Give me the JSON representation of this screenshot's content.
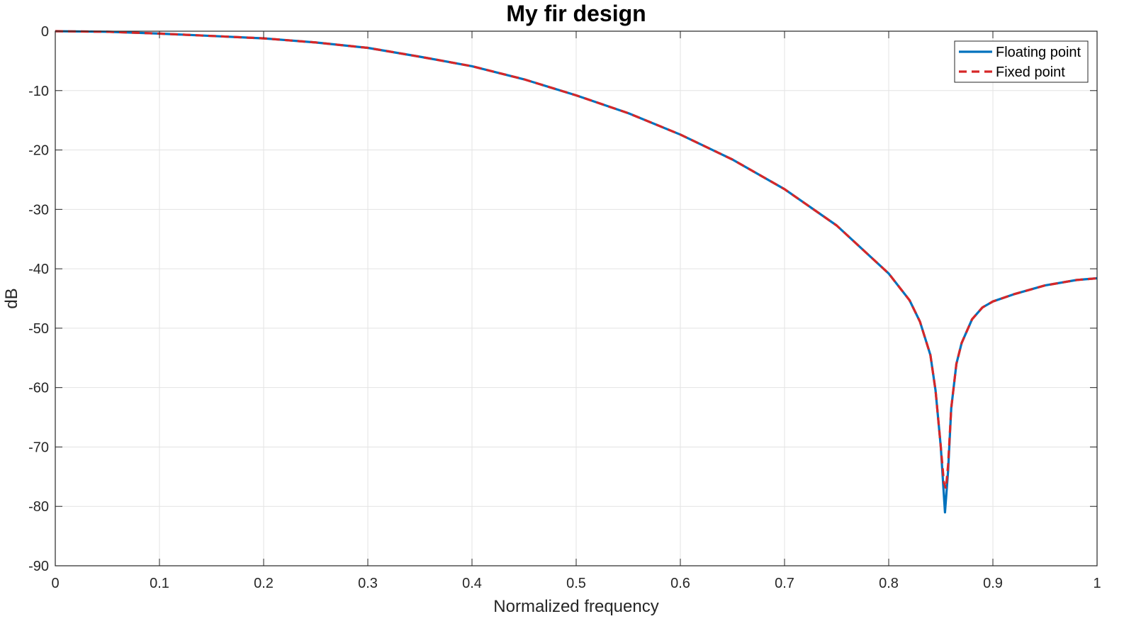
{
  "chart_data": {
    "type": "line",
    "title": "My fir design",
    "xlabel": "Normalized frequency",
    "ylabel": "dB",
    "xlim": [
      0,
      1
    ],
    "ylim": [
      -90,
      0
    ],
    "xticks": [
      0,
      0.1,
      0.2,
      0.3,
      0.4,
      0.5,
      0.6,
      0.7,
      0.8,
      0.9,
      1
    ],
    "xtick_labels": [
      "0",
      "0.1",
      "0.2",
      "0.3",
      "0.4",
      "0.5",
      "0.6",
      "0.7",
      "0.8",
      "0.9",
      "1"
    ],
    "yticks": [
      0,
      -10,
      -20,
      -30,
      -40,
      -50,
      -60,
      -70,
      -80,
      -90
    ],
    "ytick_labels": [
      "0",
      "-10",
      "-20",
      "-30",
      "-40",
      "-50",
      "-60",
      "-70",
      "-80",
      "-90"
    ],
    "grid": true,
    "legend_position": "top-right",
    "series": [
      {
        "name": "Floating point",
        "color": "#0072BD",
        "style": "solid",
        "x": [
          0,
          0.05,
          0.1,
          0.15,
          0.2,
          0.25,
          0.3,
          0.35,
          0.4,
          0.45,
          0.5,
          0.55,
          0.6,
          0.65,
          0.7,
          0.75,
          0.8,
          0.82,
          0.83,
          0.84,
          0.845,
          0.85,
          0.854,
          0.857,
          0.86,
          0.865,
          0.87,
          0.88,
          0.89,
          0.9,
          0.92,
          0.95,
          0.98,
          1
        ],
        "y": [
          0,
          -0.1,
          -0.4,
          -0.8,
          -1.2,
          -1.9,
          -2.8,
          -4.3,
          -5.9,
          -8.1,
          -10.8,
          -13.8,
          -17.4,
          -21.6,
          -26.6,
          -32.7,
          -40.8,
          -45.3,
          -48.9,
          -54.5,
          -60.5,
          -70,
          -81,
          -74,
          -63.5,
          -56,
          -52.5,
          -48.5,
          -46.5,
          -45.5,
          -44.3,
          -42.8,
          -41.9,
          -41.6
        ]
      },
      {
        "name": "Fixed point",
        "color": "#D62728",
        "style": "dashed",
        "x": [
          0,
          0.05,
          0.1,
          0.15,
          0.2,
          0.25,
          0.3,
          0.35,
          0.4,
          0.45,
          0.5,
          0.55,
          0.6,
          0.65,
          0.7,
          0.75,
          0.8,
          0.82,
          0.83,
          0.84,
          0.845,
          0.85,
          0.853,
          0.855,
          0.857,
          0.86,
          0.865,
          0.87,
          0.88,
          0.89,
          0.9,
          0.92,
          0.95,
          0.98,
          1
        ],
        "y": [
          0,
          -0.1,
          -0.4,
          -0.8,
          -1.2,
          -1.9,
          -2.8,
          -4.3,
          -5.9,
          -8.1,
          -10.8,
          -13.8,
          -17.4,
          -21.6,
          -26.6,
          -32.7,
          -40.8,
          -45.3,
          -48.9,
          -54.5,
          -60.5,
          -70,
          -76,
          -77,
          -73,
          -63.5,
          -56,
          -52.5,
          -48.5,
          -46.5,
          -45.5,
          -44.3,
          -42.8,
          -41.9,
          -41.6
        ]
      }
    ]
  }
}
